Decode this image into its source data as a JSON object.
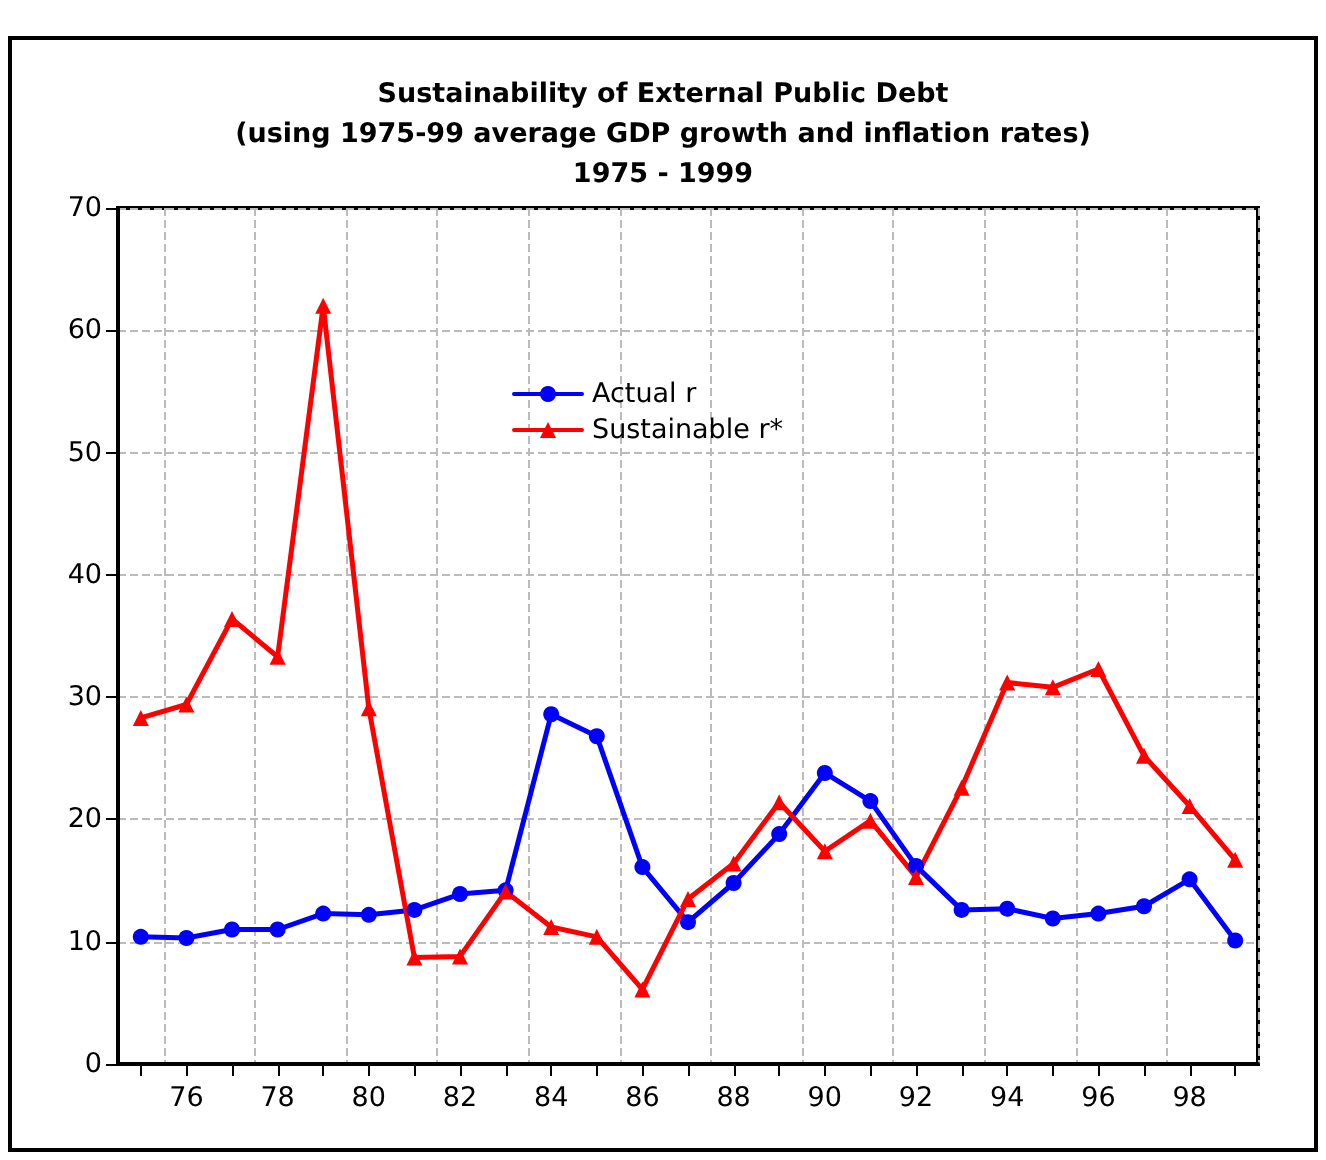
{
  "chart_data": {
    "type": "line",
    "title": "Sustainability of External Public Debt\n(using 1975-99 average GDP growth and inflation rates)\n1975 - 1999",
    "categories": [
      null,
      "76",
      null,
      "78",
      null,
      "80",
      null,
      "82",
      null,
      "84",
      null,
      "86",
      null,
      "88",
      null,
      "90",
      null,
      "92",
      null,
      "94",
      null,
      "96",
      null,
      "98",
      null
    ],
    "series": [
      {
        "name": "Actual r",
        "color": "#0000ff",
        "marker": "circle",
        "values": [
          10.4,
          10.3,
          11.0,
          11.0,
          12.3,
          12.2,
          12.6,
          13.9,
          14.2,
          28.6,
          26.8,
          16.1,
          11.6,
          14.8,
          18.8,
          23.8,
          21.5,
          16.2,
          12.6,
          12.7,
          11.9,
          12.3,
          12.9,
          15.1,
          10.1
        ]
      },
      {
        "name": "Sustainable r*",
        "color": "#ff0000",
        "marker": "triangle",
        "values": [
          28.3,
          29.4,
          36.4,
          33.3,
          62.0,
          29.1,
          8.7,
          8.8,
          14.1,
          11.2,
          10.4,
          6.1,
          13.5,
          16.4,
          21.4,
          17.4,
          19.9,
          15.3,
          22.6,
          31.2,
          30.8,
          32.3,
          25.2,
          21.1,
          16.7
        ]
      }
    ],
    "ylim": [
      0,
      70
    ],
    "yticks": [
      0,
      10,
      20,
      30,
      40,
      50,
      60,
      70
    ],
    "grid": true,
    "legend": "top",
    "line_style": "solid"
  }
}
